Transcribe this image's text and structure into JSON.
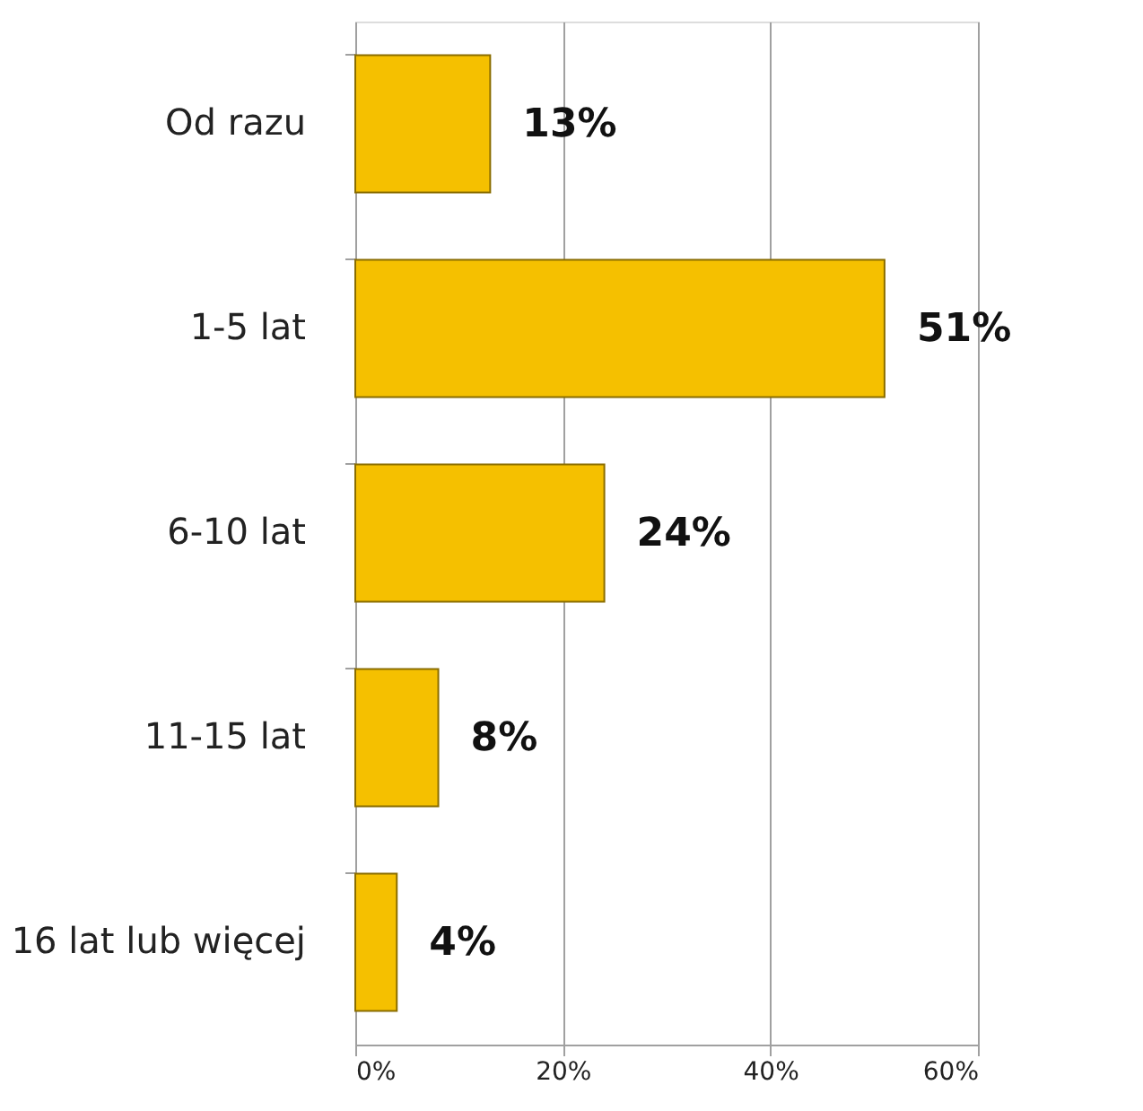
{
  "chart_data": {
    "type": "bar",
    "orientation": "horizontal",
    "categories": [
      "Od razu",
      "1-5 lat",
      "6-10 lat",
      "11-15 lat",
      "16 lat lub więcej"
    ],
    "values": [
      13,
      51,
      24,
      8,
      4
    ],
    "value_labels": [
      "13%",
      "51%",
      "24%",
      "8%",
      "4%"
    ],
    "color": "#f5c000",
    "xlim": [
      0,
      60
    ],
    "xticks": [
      {
        "value": 0,
        "label": "0%"
      },
      {
        "value": 20,
        "label": "20%"
      },
      {
        "value": 40,
        "label": "40%"
      },
      {
        "value": 60,
        "label": "60%"
      }
    ],
    "grid": "x"
  }
}
